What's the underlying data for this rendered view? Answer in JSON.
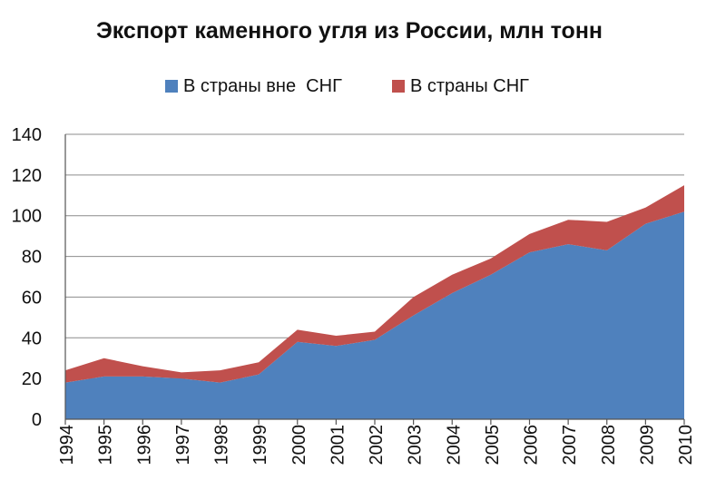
{
  "chart_data": {
    "type": "area",
    "stacked": true,
    "title": "Экспорт каменного угля из России, млн тонн",
    "xlabel": "",
    "ylabel": "",
    "ylim": [
      0,
      140
    ],
    "yticks": [
      0,
      20,
      40,
      60,
      80,
      100,
      120,
      140
    ],
    "grid": true,
    "legend": "top",
    "categories": [
      "1994",
      "1995",
      "1996",
      "1997",
      "1998",
      "1999",
      "2000",
      "2001",
      "2002",
      "2003",
      "2004",
      "2005",
      "2006",
      "2007",
      "2008",
      "2009",
      "2010"
    ],
    "series": [
      {
        "name": "В страны вне  СНГ",
        "color": "#4f81bd",
        "values": [
          18,
          21,
          21,
          20,
          18,
          22,
          38,
          36,
          39,
          51,
          62,
          71,
          82,
          86,
          83,
          96,
          102
        ]
      },
      {
        "name": "В страны СНГ",
        "color": "#c0504d",
        "values": [
          6,
          9,
          5,
          3,
          6,
          6,
          6,
          5,
          4,
          9,
          9,
          8,
          9,
          12,
          14,
          8,
          13
        ]
      }
    ]
  }
}
